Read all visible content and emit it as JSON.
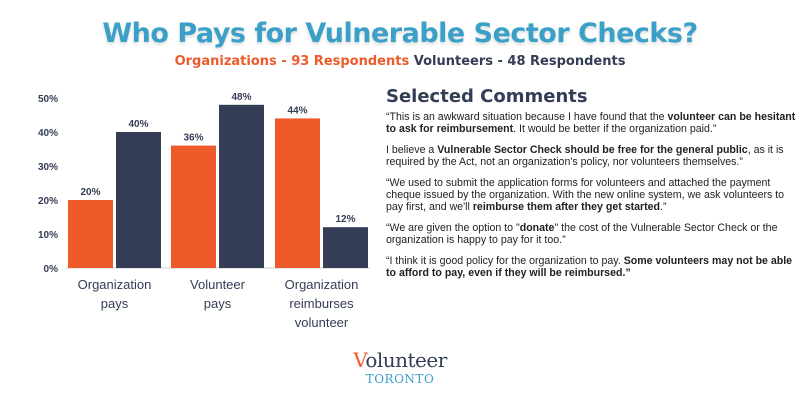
{
  "title": "Who Pays for Vulnerable Sector Checks?",
  "subtitle": {
    "org": "Organizations - 93 Respondents",
    "vol": "Volunteers - 48 Respondents"
  },
  "colors": {
    "org": "#ee5a2a",
    "vol": "#333d55",
    "title": "#3aa0c8"
  },
  "chart_data": {
    "type": "bar",
    "categories": [
      "Organization pays",
      "Volunteer pays",
      "Organization reimburses volunteer"
    ],
    "category_lines": [
      [
        "Organization",
        "pays"
      ],
      [
        "Volunteer",
        "pays"
      ],
      [
        "Organization",
        "reimburses",
        "volunteer"
      ]
    ],
    "series": [
      {
        "name": "Organizations - 93 Respondents",
        "values": [
          20,
          36,
          44
        ]
      },
      {
        "name": "Volunteers - 48 Respondents",
        "values": [
          40,
          48,
          12
        ]
      }
    ],
    "yticks": [
      "0%",
      "10%",
      "20%",
      "30%",
      "40%",
      "50%"
    ],
    "ylim": [
      0,
      50
    ],
    "ylabel": "",
    "xlabel": "",
    "grid": false
  },
  "comments_heading": "Selected Comments",
  "comments": [
    [
      {
        "t": "“This is an awkward situation because I have found that the "
      },
      {
        "t": "volunteer can be hesitant to ask for reimbursement",
        "b": true
      },
      {
        "t": ". It would be better if the organization paid.”"
      }
    ],
    [
      {
        "t": "I believe a "
      },
      {
        "t": "Vulnerable Sector Check should be free for the general public",
        "b": true
      },
      {
        "t": ", as it is required by the Act, not an organization's policy, nor volunteers themselves.”"
      }
    ],
    [
      {
        "t": "“We used to submit the application forms for volunteers and attached the payment cheque issued by the organization. With the new online system, we ask volunteers to pay first, and we'll "
      },
      {
        "t": "reimburse them after they get started",
        "b": true
      },
      {
        "t": ".”"
      }
    ],
    [
      {
        "t": "“We are given the option to \""
      },
      {
        "t": "donate",
        "b": true
      },
      {
        "t": "\" the cost of the Vulnerable Sector Check or the organization is happy to pay for it too.”"
      }
    ],
    [
      {
        "t": "“I think it is good policy for the organization to pay. "
      },
      {
        "t": "Some volunteers may not be able to afford to pay, even if they will be reimbursed.”",
        "b": true
      }
    ]
  ],
  "logo": {
    "line1": "Volunteer",
    "line2": "TORONTO"
  }
}
